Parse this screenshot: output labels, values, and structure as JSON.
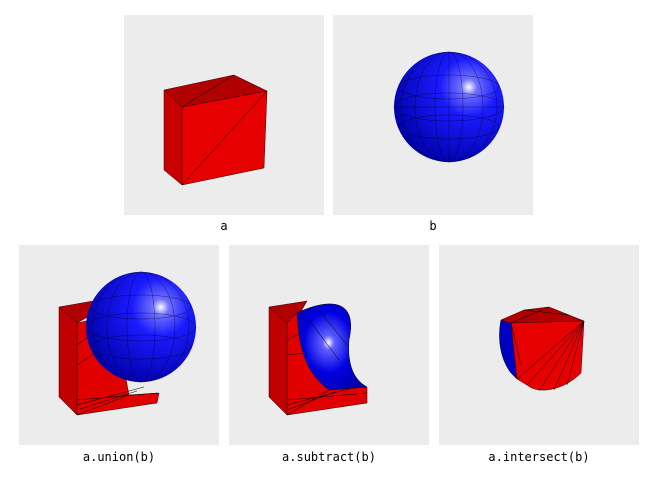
{
  "panels": [
    {
      "id": "a",
      "caption": "a"
    },
    {
      "id": "b",
      "caption": "b"
    },
    {
      "id": "union",
      "caption": "a.union(b)"
    },
    {
      "id": "subtract",
      "caption": "a.subtract(b)"
    },
    {
      "id": "intersect",
      "caption": "a.intersect(b)"
    }
  ],
  "colors": {
    "cube": "#e00000",
    "sphere": "#0000dd",
    "background": "#ececec"
  }
}
